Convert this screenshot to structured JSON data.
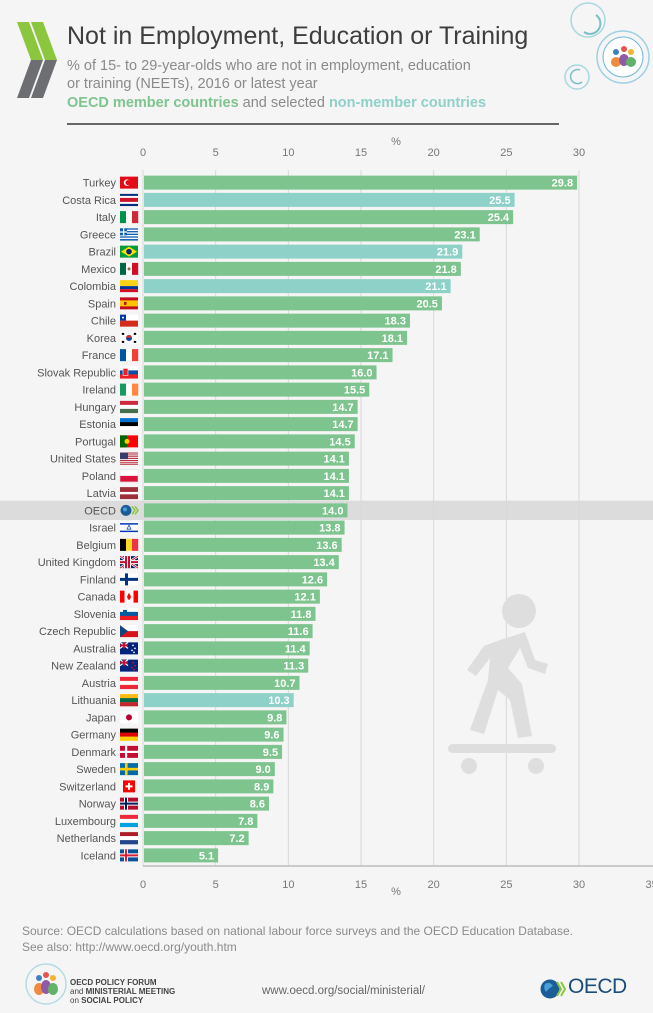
{
  "header": {
    "title": "Not in Employment, Education or Training",
    "subtitle_line1": "% of 15- to 29-year-olds who are not in employment, education",
    "subtitle_line2": "or training (NEETs), 2016 or latest year",
    "legend_member": "OECD member countries",
    "legend_connector": " and selected ",
    "legend_nonmember": "non-member countries"
  },
  "colors": {
    "member": "#7dc48e",
    "non_member": "#8ed1c8",
    "oecd_highlight_band": "#dcdcdc",
    "gridline": "#d8d8d8",
    "axis_text": "#777777",
    "title_green": "#8cc63f",
    "title_grey": "#6d6e71"
  },
  "chart_data": {
    "type": "bar",
    "orientation": "horizontal",
    "title": "Not in Employment, Education or Training",
    "xlabel": "%",
    "ylabel": "",
    "xlim": [
      0,
      30
    ],
    "x_ticks": [
      0,
      5,
      10,
      15,
      20,
      25,
      30
    ],
    "grid": true,
    "categories": [
      "Turkey",
      "Costa Rica",
      "Italy",
      "Greece",
      "Brazil",
      "Mexico",
      "Colombia",
      "Spain",
      "Chile",
      "Korea",
      "France",
      "Slovak Republic",
      "Ireland",
      "Hungary",
      "Estonia",
      "Portugal",
      "United States",
      "Poland",
      "Latvia",
      "OECD",
      "Israel",
      "Belgium",
      "United Kingdom",
      "Finland",
      "Canada",
      "Slovenia",
      "Czech Republic",
      "Australia",
      "New Zealand",
      "Austria",
      "Lithuania",
      "Japan",
      "Germany",
      "Denmark",
      "Sweden",
      "Switzerland",
      "Norway",
      "Luxembourg",
      "Netherlands",
      "Iceland"
    ],
    "values": [
      29.8,
      25.5,
      25.4,
      23.1,
      21.9,
      21.8,
      21.1,
      20.5,
      18.3,
      18.1,
      17.1,
      16.0,
      15.5,
      14.7,
      14.7,
      14.5,
      14.1,
      14.1,
      14.1,
      14.0,
      13.8,
      13.6,
      13.4,
      12.6,
      12.1,
      11.8,
      11.6,
      11.4,
      11.3,
      10.7,
      10.3,
      9.8,
      9.6,
      9.5,
      9.0,
      8.9,
      8.6,
      7.8,
      7.2,
      5.1
    ],
    "value_labels": [
      "29.8",
      "25.5",
      "25.4",
      "23.1",
      "21.9",
      "21.8",
      "21.1",
      "20.5",
      "18.3",
      "18.1",
      "17.1",
      "16.0",
      "15.5",
      "14.7",
      "14.7",
      "14.5",
      "14.1",
      "14.1",
      "14.1",
      "14.0",
      "13.8",
      "13.6",
      "13.4",
      "12.6",
      "12.1",
      "11.8",
      "11.6",
      "11.4",
      "11.3",
      "10.7",
      "10.3",
      "9.8",
      "9.6",
      "9.5",
      "9.0",
      "8.9",
      "8.6",
      "7.8",
      "7.2",
      "5.1"
    ],
    "group": [
      "member",
      "non-member",
      "member",
      "member",
      "non-member",
      "member",
      "non-member",
      "member",
      "member",
      "member",
      "member",
      "member",
      "member",
      "member",
      "member",
      "member",
      "member",
      "member",
      "member",
      "average",
      "member",
      "member",
      "member",
      "member",
      "member",
      "member",
      "member",
      "member",
      "member",
      "member",
      "non-member",
      "member",
      "member",
      "member",
      "member",
      "member",
      "member",
      "member",
      "member",
      "member"
    ],
    "flag_icons": [
      "turkey-flag",
      "costa-rica-flag",
      "italy-flag",
      "greece-flag",
      "brazil-flag",
      "mexico-flag",
      "colombia-flag",
      "spain-flag",
      "chile-flag",
      "korea-flag",
      "france-flag",
      "slovakia-flag",
      "ireland-flag",
      "hungary-flag",
      "estonia-flag",
      "portugal-flag",
      "usa-flag",
      "poland-flag",
      "latvia-flag",
      "oecd-logo",
      "israel-flag",
      "belgium-flag",
      "uk-flag",
      "finland-flag",
      "canada-flag",
      "slovenia-flag",
      "czech-flag",
      "australia-flag",
      "new-zealand-flag",
      "austria-flag",
      "lithuania-flag",
      "japan-flag",
      "germany-flag",
      "denmark-flag",
      "sweden-flag",
      "switzerland-flag",
      "norway-flag",
      "luxembourg-flag",
      "netherlands-flag",
      "iceland-flag"
    ],
    "highlight": "OECD"
  },
  "footer": {
    "source": "Source: OECD calculations based on national labour force surveys and the OECD Education Database.",
    "see_also": "See also: http://www.oecd.org/youth.htm",
    "forum_line1": "OECD POLICY FORUM",
    "forum_line2_light": "and ",
    "forum_line2_bold": "MINISTERIAL MEETING",
    "forum_line3_light": "on ",
    "forum_line3_bold": "SOCIAL POLICY",
    "url": "www.oecd.org/social/ministerial/",
    "oecd_logo_text": "OECD"
  },
  "icons": {
    "decorative_figure": "skateboarder-icon",
    "header_logo": "oecd-chevrons-icon",
    "forum_logo": "people-circle-icon"
  }
}
